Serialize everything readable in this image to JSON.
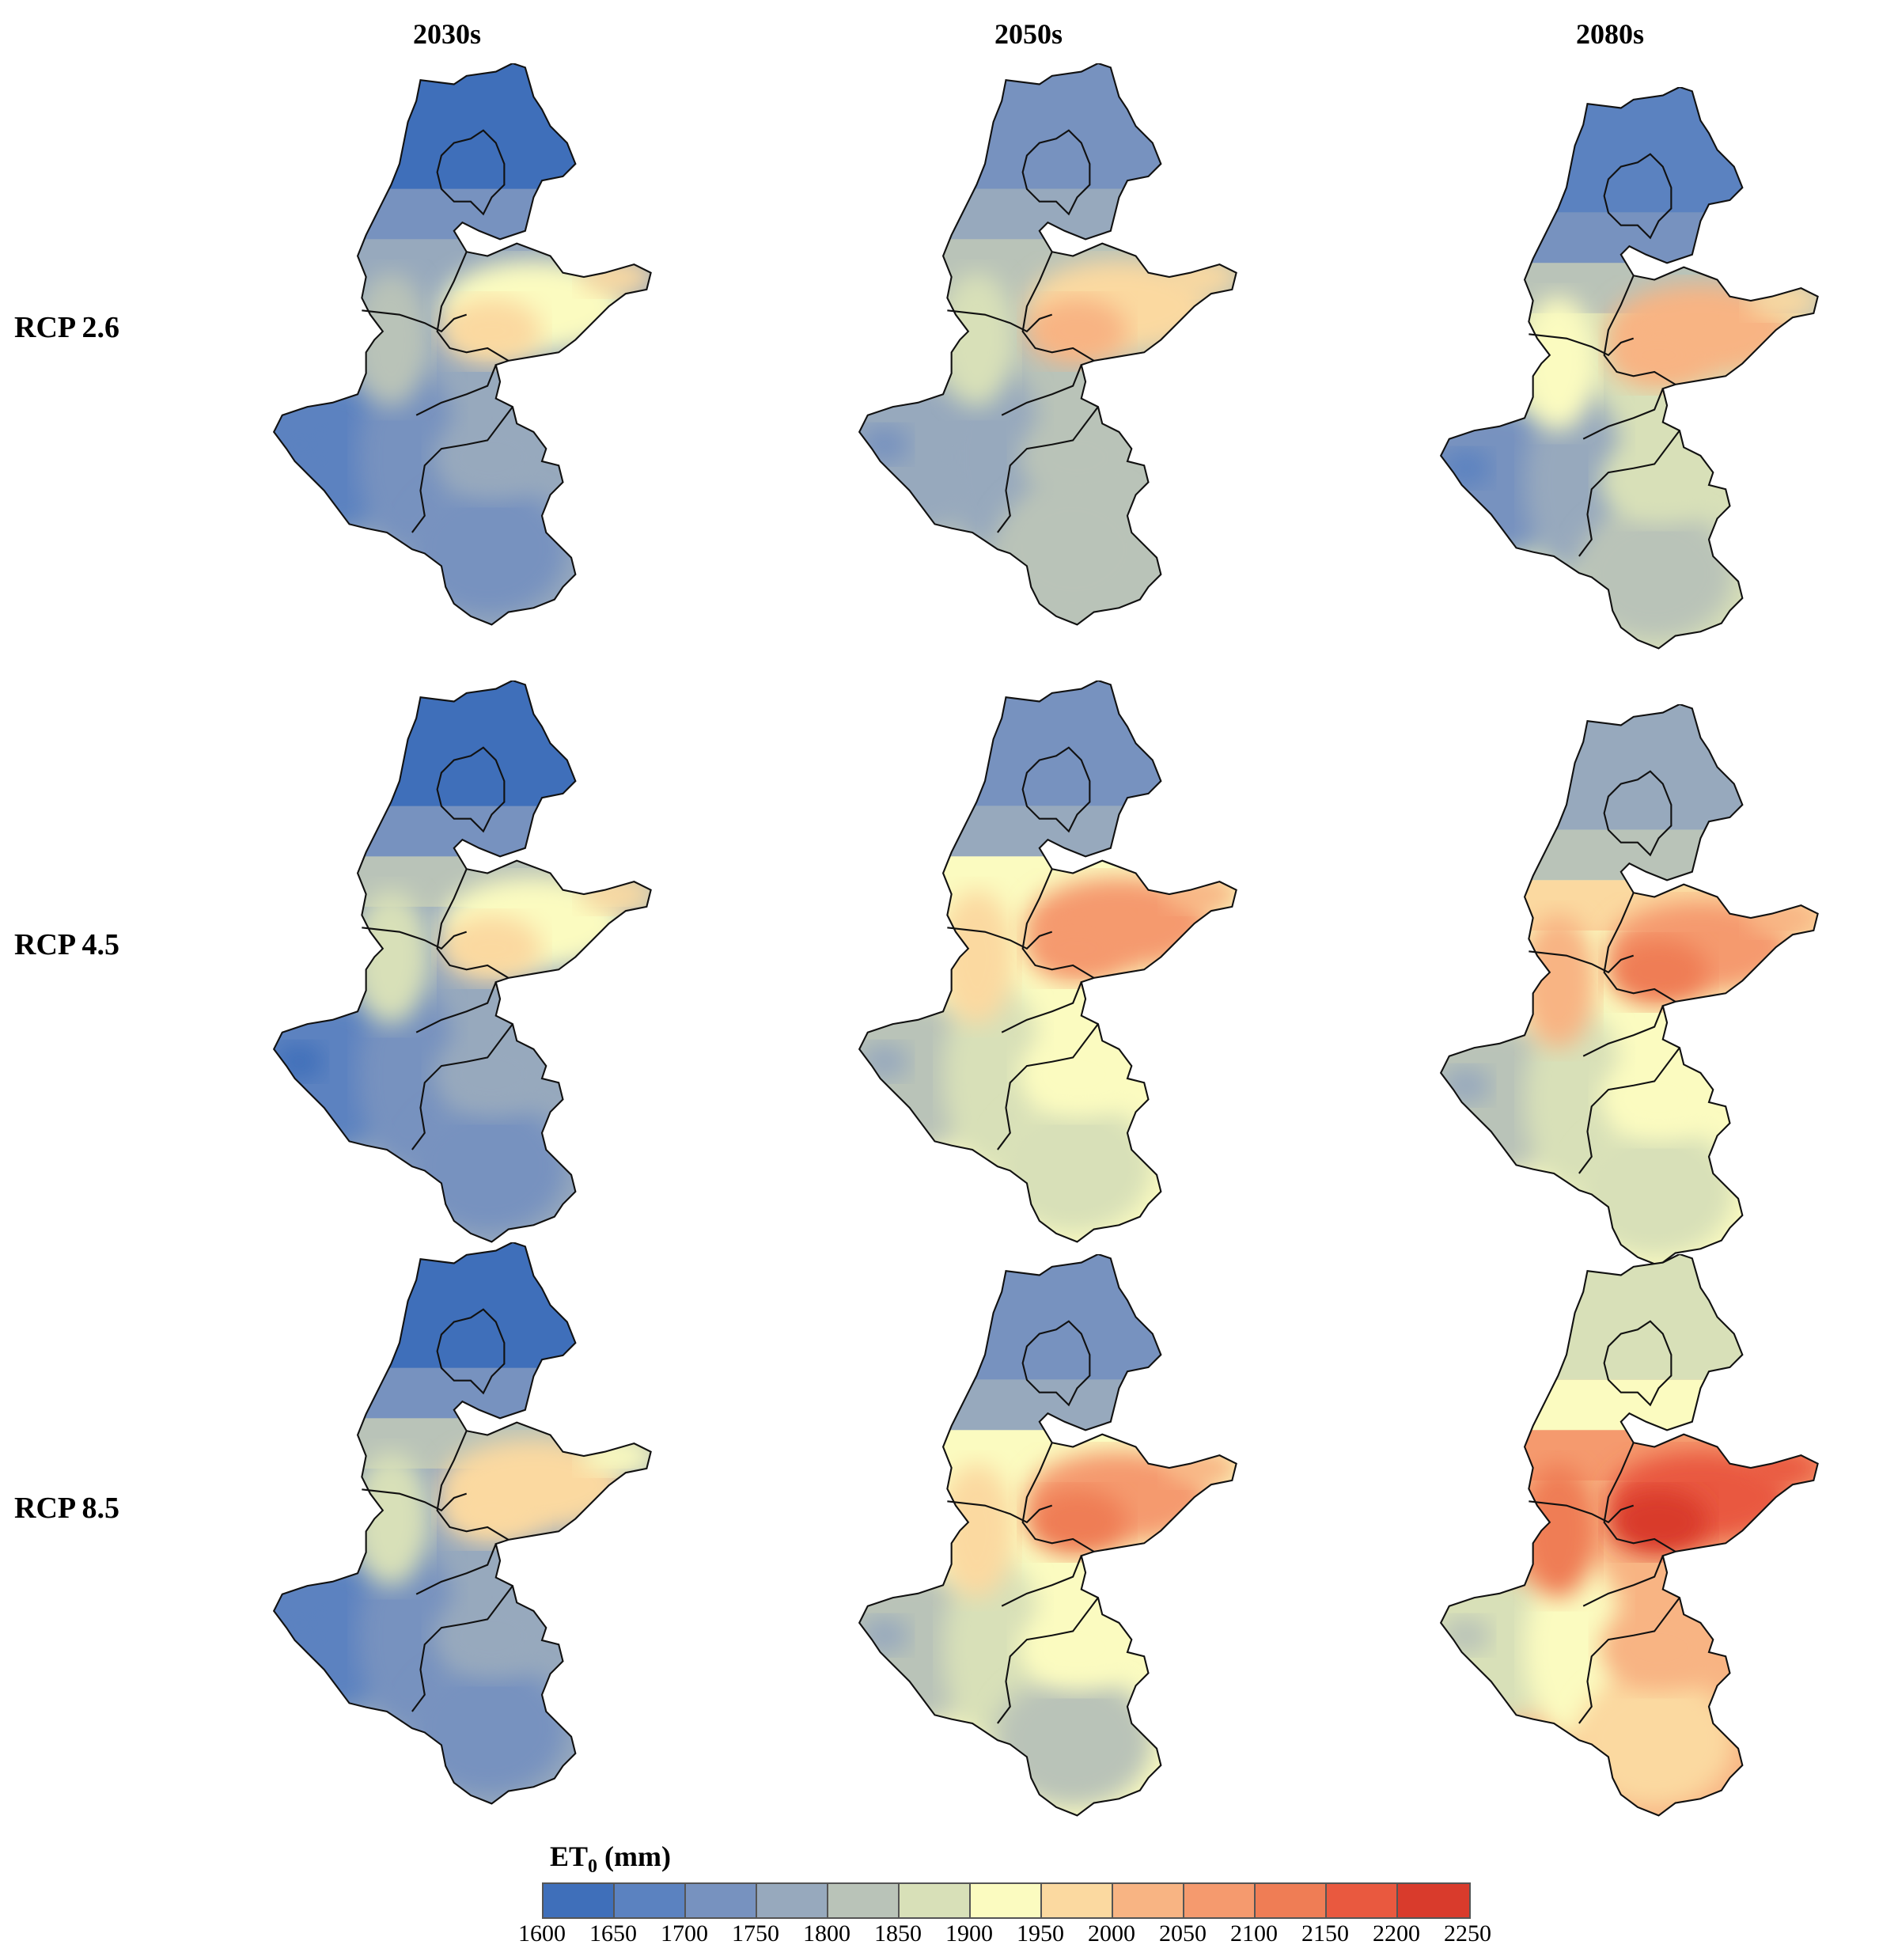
{
  "columns": [
    "2030s",
    "2050s",
    "2080s"
  ],
  "rows": [
    "RCP 2.6",
    "RCP 4.5",
    "RCP 8.5"
  ],
  "legend": {
    "title_main": "ET",
    "title_sub": "0",
    "title_unit": " (mm)",
    "ticks": [
      "1600",
      "1650",
      "1700",
      "1750",
      "1800",
      "1850",
      "1900",
      "1950",
      "2000",
      "2050",
      "2100",
      "2150",
      "2200",
      "2250"
    ],
    "colors": [
      "#3f6fba",
      "#5b82c0",
      "#7792bf",
      "#97a9bd",
      "#b9c3b8",
      "#d8e0b8",
      "#fbfbc0",
      "#fbd9a0",
      "#f8b483",
      "#f59a6e",
      "#ef7d55",
      "#e9593f",
      "#d93b2c"
    ]
  },
  "panels": [
    {
      "id": "rcp26-2030s",
      "zones": {
        "north": 0,
        "north_mid": 2,
        "band": 3,
        "band2": 4,
        "center": 6,
        "east": 7,
        "peak": 7,
        "west": 1,
        "west_mid": 2,
        "south": 2,
        "south_mid": 3,
        "sw_spot": 1
      }
    },
    {
      "id": "rcp26-2050s",
      "zones": {
        "north": 2,
        "north_mid": 3,
        "band": 4,
        "band2": 5,
        "center": 7,
        "east": 7,
        "peak": 8,
        "west": 3,
        "west_mid": 3,
        "south": 4,
        "south_mid": 4,
        "sw_spot": 2
      }
    },
    {
      "id": "rcp26-2080s",
      "zones": {
        "north": 1,
        "north_mid": 2,
        "band": 4,
        "band2": 6,
        "center": 8,
        "east": 7,
        "peak": 8,
        "west": 2,
        "west_mid": 3,
        "south": 4,
        "south_mid": 5,
        "sw_spot": 1
      }
    },
    {
      "id": "rcp45-2030s",
      "zones": {
        "north": 0,
        "north_mid": 2,
        "band": 4,
        "band2": 5,
        "center": 6,
        "east": 7,
        "peak": 7,
        "west": 1,
        "west_mid": 2,
        "south": 2,
        "south_mid": 3,
        "sw_spot": 0
      }
    },
    {
      "id": "rcp45-2050s",
      "zones": {
        "north": 2,
        "north_mid": 3,
        "band": 6,
        "band2": 7,
        "center": 9,
        "east": 8,
        "peak": 9,
        "west": 4,
        "west_mid": 5,
        "south": 5,
        "south_mid": 6,
        "sw_spot": 3
      }
    },
    {
      "id": "rcp45-2080s",
      "zones": {
        "north": 3,
        "north_mid": 4,
        "band": 7,
        "band2": 8,
        "center": 9,
        "east": 8,
        "peak": 10,
        "west": 4,
        "west_mid": 5,
        "south": 5,
        "south_mid": 6,
        "sw_spot": 3
      }
    },
    {
      "id": "rcp85-2030s",
      "zones": {
        "north": 0,
        "north_mid": 2,
        "band": 4,
        "band2": 5,
        "center": 7,
        "east": 6,
        "peak": 7,
        "west": 1,
        "west_mid": 2,
        "south": 2,
        "south_mid": 3,
        "sw_spot": 1
      }
    },
    {
      "id": "rcp85-2050s",
      "zones": {
        "north": 2,
        "north_mid": 3,
        "band": 6,
        "band2": 7,
        "center": 9,
        "east": 8,
        "peak": 10,
        "west": 4,
        "west_mid": 5,
        "south": 4,
        "south_mid": 6,
        "sw_spot": 3
      }
    },
    {
      "id": "rcp85-2080s",
      "zones": {
        "north": 5,
        "north_mid": 6,
        "band": 9,
        "band2": 10,
        "center": 11,
        "east": 11,
        "peak": 12,
        "west": 5,
        "west_mid": 6,
        "south": 7,
        "south_mid": 8,
        "sw_spot": 4
      }
    }
  ]
}
